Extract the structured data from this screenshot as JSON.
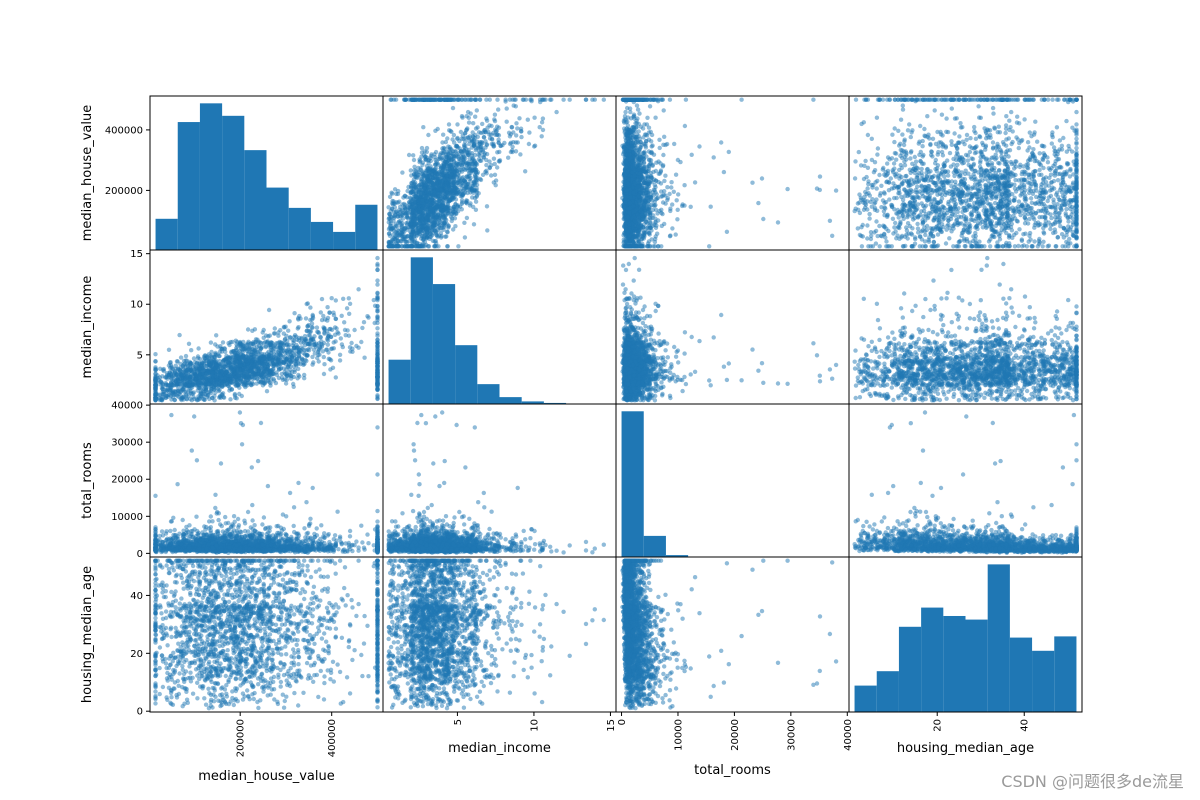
{
  "chart_data": {
    "type": "scatter-matrix",
    "title": "",
    "variables": [
      {
        "name": "median_house_value",
        "range": [
          14999,
          500001
        ]
      },
      {
        "name": "median_income",
        "range": [
          0.5,
          15.0001
        ]
      },
      {
        "name": "total_rooms",
        "range": [
          2,
          39320
        ]
      },
      {
        "name": "housing_median_age",
        "range": [
          1,
          52
        ]
      }
    ],
    "row_ticks": [
      {
        "labels": [
          "200000",
          "400000"
        ],
        "values": [
          200000,
          400000
        ]
      },
      {
        "labels": [
          "5",
          "10",
          "15"
        ],
        "values": [
          5,
          10,
          15
        ]
      },
      {
        "labels": [
          "0",
          "10000",
          "20000",
          "30000",
          "40000"
        ],
        "values": [
          0,
          10000,
          20000,
          30000,
          40000
        ]
      },
      {
        "labels": [
          "0",
          "20",
          "40"
        ],
        "values": [
          0,
          20,
          40
        ]
      }
    ],
    "col_ticks": [
      {
        "labels": [
          "200000",
          "400000"
        ],
        "values": [
          200000,
          400000
        ]
      },
      {
        "labels": [
          "5",
          "10",
          "15"
        ],
        "values": [
          5,
          10,
          15
        ]
      },
      {
        "labels": [
          "0",
          "10000",
          "20000",
          "30000",
          "40000"
        ],
        "values": [
          0,
          10000,
          20000,
          30000,
          40000
        ]
      },
      {
        "labels": [
          "20",
          "40"
        ],
        "values": [
          20,
          40
        ]
      }
    ],
    "histograms": [
      {
        "bins": 10,
        "counts": [
          1000,
          4100,
          4700,
          4300,
          3200,
          2000,
          1350,
          900,
          580,
          1450
        ]
      },
      {
        "bins": 10,
        "counts": [
          2900,
          9600,
          7850,
          3850,
          1300,
          450,
          170,
          70,
          30,
          20
        ]
      },
      {
        "bins": 10,
        "counts": [
          17600,
          2550,
          230,
          40,
          15,
          7,
          4,
          2,
          1,
          1
        ]
      },
      {
        "bins": 10,
        "counts": [
          1100,
          1700,
          3550,
          4350,
          4000,
          3850,
          6150,
          3100,
          2550,
          3150
        ]
      }
    ],
    "color": "#1f77b4",
    "point_alpha": 0.5
  },
  "watermark": "CSDN @问题很多de流星"
}
